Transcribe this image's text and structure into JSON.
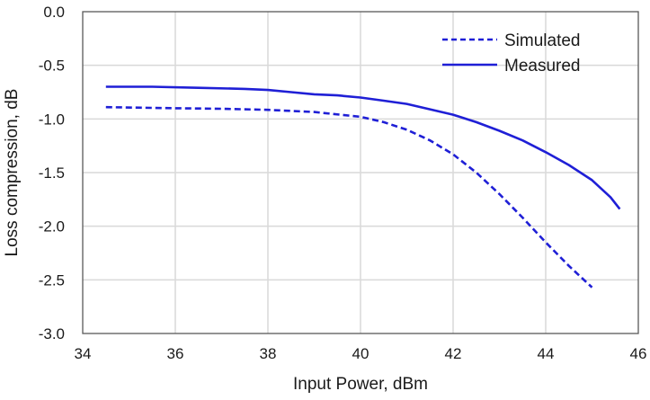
{
  "chart_data": {
    "type": "line",
    "title": "",
    "xlabel": "Input Power, dBm",
    "ylabel": "Loss compression, dB",
    "xlim": [
      34,
      46
    ],
    "ylim": [
      -3.0,
      0.0
    ],
    "xticks": [
      34,
      36,
      38,
      40,
      42,
      44,
      46
    ],
    "yticks": [
      0.0,
      -0.5,
      -1.0,
      -1.5,
      -2.0,
      -2.5,
      -3.0
    ],
    "xtick_labels": [
      "34",
      "36",
      "38",
      "40",
      "42",
      "44",
      "46"
    ],
    "ytick_labels": [
      "0.0",
      "-0.5",
      "-1.0",
      "-1.5",
      "-2.0",
      "-2.5",
      "-3.0"
    ],
    "grid": true,
    "legend_position": "top-right",
    "series": [
      {
        "name": "Simulated",
        "style": "dashed",
        "color": "#1f1fd6",
        "x": [
          34.5,
          36.0,
          37.0,
          38.0,
          39.0,
          40.0,
          40.5,
          41.0,
          41.5,
          42.0,
          42.5,
          43.0,
          43.5,
          44.0,
          44.5,
          45.0
        ],
        "y": [
          -0.89,
          -0.9,
          -0.905,
          -0.915,
          -0.935,
          -0.98,
          -1.03,
          -1.1,
          -1.2,
          -1.33,
          -1.5,
          -1.7,
          -1.92,
          -2.15,
          -2.37,
          -2.57
        ]
      },
      {
        "name": "Measured",
        "style": "solid",
        "color": "#1f1fd6",
        "x": [
          34.5,
          35.5,
          36.5,
          37.5,
          38.0,
          38.5,
          39.0,
          39.5,
          40.0,
          40.5,
          41.0,
          41.5,
          42.0,
          42.5,
          43.0,
          43.5,
          44.0,
          44.5,
          45.0,
          45.4,
          45.6
        ],
        "y": [
          -0.7,
          -0.7,
          -0.71,
          -0.72,
          -0.73,
          -0.75,
          -0.77,
          -0.78,
          -0.8,
          -0.83,
          -0.86,
          -0.91,
          -0.96,
          -1.03,
          -1.11,
          -1.2,
          -1.31,
          -1.43,
          -1.57,
          -1.73,
          -1.84
        ]
      }
    ]
  }
}
